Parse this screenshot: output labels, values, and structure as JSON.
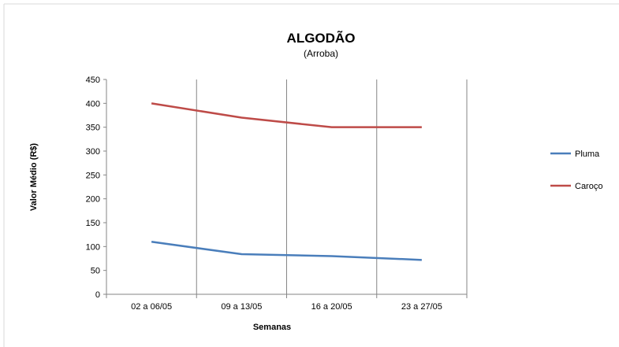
{
  "chart_data": {
    "type": "line",
    "title": "ALGODÃO",
    "subtitle": "(Arroba)",
    "xlabel": "Semanas",
    "ylabel": "Valor Médio (R$)",
    "categories": [
      "02 a 06/05",
      "09 a 13/05",
      "16 a 20/05",
      "23 a 27/05"
    ],
    "ylim": [
      0,
      450
    ],
    "yticks": [
      0,
      50,
      100,
      150,
      200,
      250,
      300,
      350,
      400,
      450
    ],
    "grid": "vertical",
    "legend_position": "right",
    "series": [
      {
        "name": "Pluma",
        "color": "#4a7ebb",
        "values": [
          110,
          84,
          80,
          72
        ]
      },
      {
        "name": "Caroço",
        "color": "#be4b48",
        "values": [
          400,
          370,
          350,
          350
        ]
      }
    ]
  }
}
